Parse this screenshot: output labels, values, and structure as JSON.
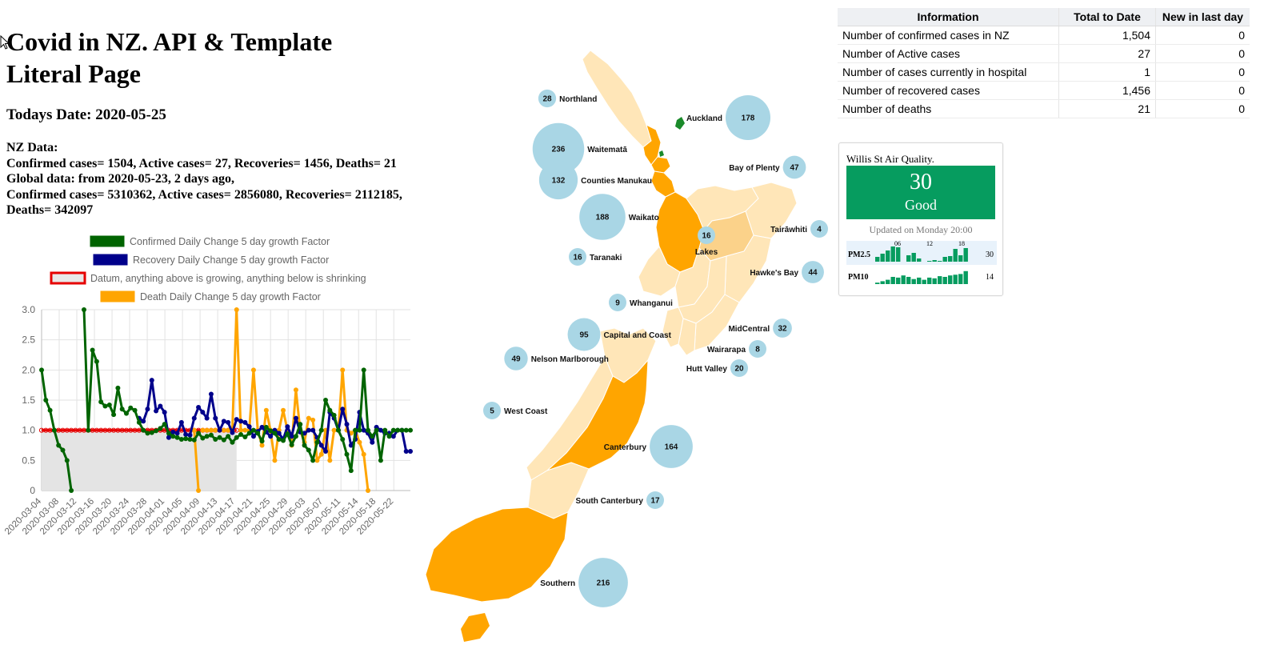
{
  "page": {
    "title": "Covid in NZ. API & Template Literal Page",
    "todays_date": "Todays Date: 2020-05-25",
    "nz_heading": "NZ Data:",
    "nz_line": "Confirmed cases= 1504, Active cases= 27, Recoveries= 1456, Deaths= 21",
    "global_line1": "Global data: from 2020-05-23, 2 days ago,",
    "global_line2": "Confirmed cases= 5310362, Active cases= 2856080, Recoveries= 2112185,",
    "global_line3": "Deaths= 342097"
  },
  "chart_data": {
    "type": "line",
    "title": "",
    "xlabel": "",
    "ylabel": "",
    "ylim": [
      0,
      3
    ],
    "yticks": [
      "0",
      "0.5",
      "1.0",
      "1.5",
      "2.0",
      "2.5",
      "3.0"
    ],
    "x_tick_labels": [
      "2020-03-04",
      "2020-03-08",
      "2020-03-12",
      "2020-03-16",
      "2020-03-20",
      "2020-03-24",
      "2020-03-28",
      "2020-04-01",
      "2020-04-05",
      "2020-04-09",
      "2020-04-13",
      "2020-04-17",
      "2020-04-21",
      "2020-04-25",
      "2020-04-29",
      "2020-05-03",
      "2020-05-07",
      "2020-05-11",
      "2020-05-14",
      "2020-05-18",
      "2020-05-22"
    ],
    "grid": true,
    "legend_placement": "top",
    "legend": [
      {
        "label": "Confirmed Daily Change 5 day growth Factor",
        "color": "#006400"
      },
      {
        "label": "Recovery Daily Change 5 day growth Factor",
        "color": "#00008b"
      },
      {
        "label": "Datum, anything above is growing, anything below is shrinking",
        "color": "#e60000",
        "fill": "#e8e8e8"
      },
      {
        "label": "Death Daily Change 5 day growth Factor",
        "color": "#ffa500"
      }
    ],
    "series": [
      {
        "name": "Confirmed Daily Change 5 day growth Factor",
        "color": "#006400",
        "points": [
          [
            0,
            2.0
          ],
          [
            1,
            1.5
          ],
          [
            2,
            1.33
          ],
          [
            3,
            1.0
          ],
          [
            4,
            0.75
          ],
          [
            5,
            0.67
          ],
          [
            6,
            0.5
          ],
          [
            7,
            0.0
          ],
          [
            null,
            null
          ],
          [
            10,
            3.0
          ],
          [
            11,
            1.0
          ],
          [
            12,
            2.33
          ],
          [
            13,
            2.14
          ],
          [
            14,
            1.47
          ],
          [
            15,
            1.4
          ],
          [
            16,
            1.42
          ],
          [
            17,
            1.26
          ],
          [
            18,
            1.7
          ],
          [
            19,
            1.35
          ],
          [
            20,
            1.28
          ],
          [
            21,
            1.37
          ],
          [
            22,
            1.33
          ],
          [
            23,
            1.13
          ],
          [
            24,
            1.0
          ],
          [
            25,
            0.95
          ],
          [
            26,
            0.96
          ],
          [
            27,
            0.99
          ],
          [
            28,
            1.03
          ],
          [
            29,
            1.1
          ],
          [
            30,
            0.95
          ],
          [
            31,
            0.9
          ],
          [
            32,
            0.88
          ],
          [
            33,
            0.85
          ],
          [
            34,
            0.86
          ],
          [
            35,
            0.85
          ],
          [
            36,
            0.84
          ],
          [
            37,
            0.95
          ],
          [
            38,
            0.87
          ],
          [
            39,
            0.9
          ],
          [
            40,
            0.92
          ],
          [
            41,
            0.85
          ],
          [
            42,
            0.88
          ],
          [
            43,
            0.84
          ],
          [
            44,
            0.9
          ],
          [
            45,
            0.8
          ],
          [
            46,
            0.88
          ],
          [
            47,
            0.93
          ],
          [
            48,
            0.89
          ],
          [
            49,
            0.95
          ],
          [
            50,
            1.0
          ],
          [
            51,
            0.95
          ],
          [
            52,
            0.82
          ],
          [
            53,
            1.05
          ],
          [
            54,
            0.99
          ],
          [
            55,
            0.95
          ],
          [
            56,
            0.85
          ],
          [
            57,
            0.83
          ],
          [
            58,
            0.94
          ],
          [
            59,
            0.76
          ],
          [
            60,
            0.9
          ],
          [
            61,
            1.1
          ],
          [
            62,
            0.75
          ],
          [
            63,
            0.67
          ],
          [
            64,
            0.5
          ],
          [
            65,
            0.8
          ],
          [
            66,
            1.0
          ],
          [
            67,
            1.5
          ],
          [
            68,
            1.33
          ],
          [
            69,
            1.25
          ],
          [
            70,
            1.0
          ],
          [
            71,
            0.85
          ],
          [
            72,
            0.6
          ],
          [
            73,
            0.33
          ],
          [
            74,
            1.0
          ],
          [
            75,
            1.0
          ],
          [
            76,
            2.0
          ],
          [
            77,
            1.0
          ],
          [
            78,
            0.9
          ],
          [
            79,
            1.0
          ],
          [
            80,
            0.5
          ],
          [
            81,
            1.0
          ],
          [
            82,
            0.9
          ],
          [
            83,
            1.0
          ],
          [
            84,
            1.0
          ],
          [
            85,
            1.0
          ],
          [
            86,
            1.0
          ],
          [
            87,
            1.0
          ]
        ]
      },
      {
        "name": "Recovery Daily Change 5 day growth Factor",
        "color": "#00008b",
        "points": [
          [
            23,
            1.2
          ],
          [
            24,
            1.15
          ],
          [
            25,
            1.35
          ],
          [
            26,
            1.83
          ],
          [
            27,
            1.32
          ],
          [
            28,
            1.4
          ],
          [
            29,
            1.3
          ],
          [
            30,
            0.88
          ],
          [
            31,
            0.97
          ],
          [
            32,
            0.95
          ],
          [
            33,
            1.13
          ],
          [
            34,
            0.93
          ],
          [
            35,
            0.92
          ],
          [
            36,
            1.2
          ],
          [
            37,
            1.38
          ],
          [
            38,
            1.3
          ],
          [
            39,
            1.2
          ],
          [
            40,
            1.6
          ],
          [
            41,
            1.2
          ],
          [
            42,
            1.0
          ],
          [
            43,
            1.15
          ],
          [
            44,
            1.13
          ],
          [
            45,
            0.96
          ],
          [
            46,
            1.18
          ],
          [
            47,
            1.15
          ],
          [
            48,
            1.13
          ],
          [
            49,
            1.06
          ],
          [
            50,
            0.9
          ],
          [
            51,
            0.98
          ],
          [
            52,
            1.05
          ],
          [
            53,
            0.97
          ],
          [
            54,
            0.9
          ],
          [
            55,
            1.0
          ],
          [
            56,
            0.95
          ],
          [
            57,
            0.85
          ],
          [
            58,
            1.06
          ],
          [
            59,
            0.9
          ],
          [
            60,
            1.2
          ],
          [
            61,
            0.97
          ],
          [
            62,
            0.95
          ],
          [
            63,
            1.0
          ],
          [
            64,
            1.0
          ],
          [
            65,
            0.88
          ],
          [
            66,
            0.75
          ],
          [
            67,
            0.65
          ],
          [
            68,
            1.3
          ],
          [
            69,
            1.2
          ],
          [
            70,
            1.0
          ],
          [
            71,
            1.35
          ],
          [
            72,
            1.1
          ],
          [
            73,
            0.75
          ],
          [
            74,
            0.85
          ],
          [
            75,
            1.3
          ],
          [
            76,
            1.0
          ],
          [
            77,
            0.95
          ],
          [
            78,
            0.8
          ],
          [
            79,
            1.05
          ],
          [
            80,
            1.0
          ],
          [
            81,
            0.95
          ],
          [
            82,
            0.95
          ],
          [
            83,
            0.9
          ],
          [
            84,
            1.0
          ],
          [
            85,
            1.0
          ],
          [
            86,
            0.65
          ],
          [
            87,
            0.65
          ]
        ]
      },
      {
        "name": "Death Daily Change 5 day growth Factor",
        "color": "#ffa500",
        "points": [
          [
            36,
            1.0
          ],
          [
            37,
            0.0
          ],
          [
            null,
            null
          ],
          [
            38,
            1.0
          ],
          [
            39,
            1.0
          ],
          [
            40,
            1.0
          ],
          [
            41,
            1.0
          ],
          [
            42,
            1.0
          ],
          [
            43,
            1.0
          ],
          [
            44,
            1.0
          ],
          [
            45,
            1.0
          ],
          [
            46,
            3.0
          ],
          [
            47,
            1.0
          ],
          [
            48,
            1.0
          ],
          [
            49,
            1.0
          ],
          [
            50,
            2.0
          ],
          [
            51,
            1.0
          ],
          [
            52,
            0.75
          ],
          [
            53,
            1.33
          ],
          [
            54,
            1.0
          ],
          [
            55,
            0.5
          ],
          [
            56,
            1.0
          ],
          [
            57,
            1.33
          ],
          [
            58,
            1.0
          ],
          [
            59,
            0.75
          ],
          [
            60,
            1.67
          ],
          [
            61,
            1.0
          ],
          [
            62,
            0.8
          ],
          [
            63,
            1.2
          ],
          [
            64,
            1.17
          ],
          [
            65,
            0.5
          ],
          [
            66,
            0.6
          ],
          [
            67,
            1.0
          ],
          [
            68,
            0.5
          ],
          [
            69,
            1.0
          ],
          [
            70,
            1.0
          ],
          [
            71,
            2.0
          ],
          [
            72,
            1.0
          ],
          [
            73,
            0.95
          ],
          [
            74,
            1.0
          ],
          [
            75,
            0.8
          ],
          [
            76,
            0.6
          ],
          [
            77,
            0.0
          ]
        ]
      },
      {
        "name": "Datum, anything above is growing, anything below is shrinking",
        "color": "#e60000",
        "constant": 1.0,
        "x_from": 0,
        "x_to": 46
      }
    ]
  },
  "map": {
    "regions": [
      {
        "name": "Northland",
        "count": "28"
      },
      {
        "name": "Auckland",
        "count": "178"
      },
      {
        "name": "Waitematā",
        "count": "236"
      },
      {
        "name": "Counties Manukau",
        "count": "132"
      },
      {
        "name": "Bay of Plenty",
        "count": "47"
      },
      {
        "name": "Waikato",
        "count": "188"
      },
      {
        "name": "Tairāwhiti",
        "count": "4"
      },
      {
        "name": "Lakes",
        "count": "16"
      },
      {
        "name": "Taranaki",
        "count": "16"
      },
      {
        "name": "Hawke's Bay",
        "count": "44"
      },
      {
        "name": "Whanganui",
        "count": "9"
      },
      {
        "name": "Capital and Coast",
        "count": "95"
      },
      {
        "name": "MidCentral",
        "count": "32"
      },
      {
        "name": "Wairarapa",
        "count": "8"
      },
      {
        "name": "Nelson Marlborough",
        "count": "49"
      },
      {
        "name": "Hutt Valley",
        "count": "20"
      },
      {
        "name": "West Coast",
        "count": "5"
      },
      {
        "name": "Canterbury",
        "count": "164"
      },
      {
        "name": "South Canterbury",
        "count": "17"
      },
      {
        "name": "Southern",
        "count": "216"
      }
    ],
    "colors": {
      "high": "#ffa500",
      "low": "#ffe6b8",
      "mid": "#fbd28a",
      "bubble": "#a9d6e5",
      "auckland_islands": "#1a8a2a"
    }
  },
  "info_table": {
    "headers": [
      "Information",
      "Total to Date",
      "New in last day"
    ],
    "rows": [
      [
        "Number of confirmed cases in NZ",
        "1,504",
        "0"
      ],
      [
        "Number of Active cases",
        "27",
        "0"
      ],
      [
        "Number of cases currently in hospital",
        "1",
        "0"
      ],
      [
        "Number of recovered cases",
        "1,456",
        "0"
      ],
      [
        "Number of deaths",
        "21",
        "0"
      ]
    ]
  },
  "air_quality": {
    "title": "Willis St Air Quality.",
    "value": "30",
    "status": "Good",
    "updated": "Updated on Monday 20:00",
    "color": "#069c5f",
    "hour_labels": [
      "06",
      "12",
      "18"
    ],
    "pm25": {
      "label": "PM2.5",
      "value": "30",
      "bars": [
        0.3,
        0.5,
        0.7,
        0.95,
        0.9,
        0,
        0.4,
        0.55,
        0.2,
        0,
        0.05,
        0.1,
        0.05,
        0.3,
        0.35,
        0.8,
        0.4,
        0.85
      ]
    },
    "pm10": {
      "label": "PM10",
      "value": "14",
      "bars": [
        0.1,
        0.2,
        0.3,
        0.5,
        0.45,
        0.6,
        0.5,
        0.35,
        0.45,
        0.3,
        0.45,
        0.4,
        0.55,
        0.5,
        0.6,
        0.65,
        0.7,
        0.9
      ]
    }
  }
}
